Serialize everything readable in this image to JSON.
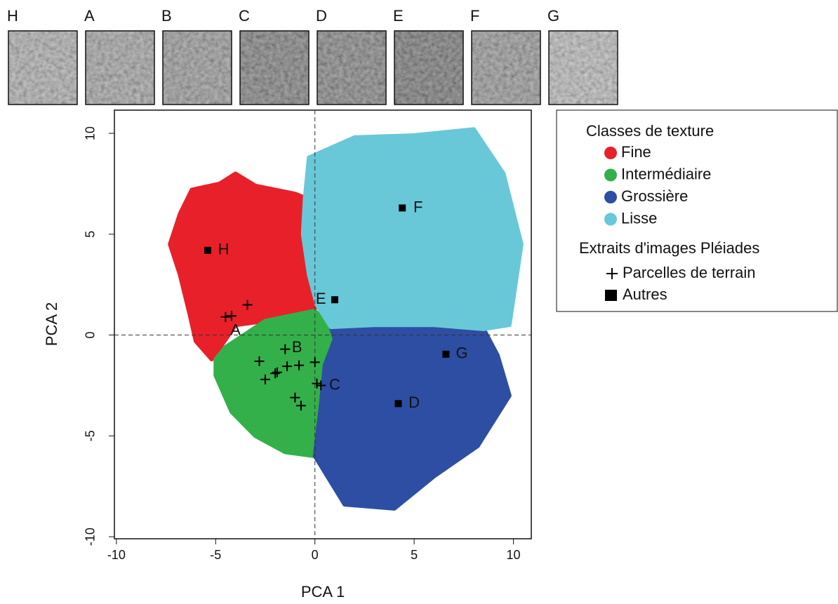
{
  "thumbnails": [
    "H",
    "A",
    "B",
    "C",
    "D",
    "E",
    "F",
    "G"
  ],
  "chart_data": {
    "type": "scatter",
    "xlabel": "PCA 1",
    "ylabel": "PCA 2",
    "xlim": [
      -10.1,
      10.9
    ],
    "ylim": [
      -10.1,
      11.15
    ],
    "xticks": [
      -10,
      -5,
      0,
      5,
      10
    ],
    "yticks": [
      -10,
      -5,
      0,
      5,
      10
    ],
    "zero_lines": true,
    "legend_title": "Classes de texture",
    "marker_legend_title": "Extraits d'images Pléiades",
    "series": [
      {
        "name": "Fine",
        "color": "#e8202a",
        "shape": "region",
        "x": [
          -5.2,
          -6,
          -6.3,
          -6.8,
          -7.3,
          -6.8,
          -6.2,
          -4.8,
          -4,
          -3,
          -2,
          -1,
          -0.5,
          -0.6,
          -0.3,
          0.1,
          -0.2,
          -2.5,
          -4,
          -4.9
        ],
        "y": [
          -1.2,
          -0.3,
          1,
          3,
          4.5,
          6,
          7.2,
          7.5,
          8,
          7.4,
          7.2,
          7,
          6.8,
          5,
          3,
          1.5,
          1,
          0.7,
          0.5,
          -0.8
        ]
      },
      {
        "name": "Intermédiaire",
        "color": "#33b04a",
        "shape": "region",
        "x": [
          -5,
          -4.5,
          -2.5,
          0,
          0.8,
          1,
          0.5,
          0.3,
          0,
          -1.5,
          -3,
          -4.2,
          -5
        ],
        "y": [
          -1.2,
          -0.6,
          0.7,
          1.2,
          0.4,
          -0.2,
          -1.5,
          -3.5,
          -6,
          -5.8,
          -5,
          -3.8,
          -2
        ]
      },
      {
        "name": "Grossière",
        "color": "#2e4ea3",
        "shape": "region",
        "x": [
          0.8,
          3,
          6,
          8.5,
          9.2,
          9.8,
          8.2,
          6,
          4,
          1.5,
          0,
          0.3,
          0.5,
          1
        ],
        "y": [
          0.4,
          0.5,
          0.5,
          0.3,
          -1,
          -3,
          -5.5,
          -7,
          -8.6,
          -8.4,
          -6,
          -3.5,
          -1.5,
          -0.2
        ]
      },
      {
        "name": "Lisse",
        "color": "#68c8d8",
        "shape": "region",
        "x": [
          -0.3,
          -0.6,
          -0.5,
          -0.3,
          2,
          5,
          8,
          9.5,
          10.4,
          9.8,
          8.5,
          6,
          3,
          0.8,
          0.1
        ],
        "y": [
          3,
          5,
          6.8,
          8.8,
          9.8,
          9.9,
          10.2,
          8,
          4.5,
          0.5,
          0.3,
          0.5,
          0.5,
          0.4,
          1.5
        ]
      },
      {
        "name": "Parcelles de terrain",
        "color": "#000000",
        "shape": "plus",
        "x": [
          -4.5,
          -4.2,
          -3.4,
          -1.5,
          -2.8,
          -2,
          -1.9,
          -2.5,
          -1.4,
          -0.8,
          0,
          -1,
          -0.7,
          0.1,
          0.3
        ],
        "y": [
          0.9,
          0.95,
          1.5,
          -0.7,
          -1.3,
          -1.9,
          -1.85,
          -2.2,
          -1.55,
          -1.5,
          -1.35,
          -3.1,
          -3.5,
          -2.4,
          -2.5
        ]
      },
      {
        "name": "Autres",
        "color": "#000000",
        "shape": "square",
        "x": [
          -5.4,
          4.4,
          1,
          6.6,
          4.2
        ],
        "y": [
          4.2,
          6.3,
          1.75,
          -0.95,
          -3.4
        ]
      }
    ],
    "annotations": [
      {
        "text": "H",
        "x": -4.6,
        "y": 4.2
      },
      {
        "text": "F",
        "x": 5.2,
        "y": 6.3
      },
      {
        "text": "E",
        "x": 0.3,
        "y": 1.75
      },
      {
        "text": "G",
        "x": 7.4,
        "y": -0.95
      },
      {
        "text": "D",
        "x": 5,
        "y": -3.4
      },
      {
        "text": "A",
        "x": -4,
        "y": 0.2
      },
      {
        "text": "B",
        "x": -0.9,
        "y": -0.65
      },
      {
        "text": "C",
        "x": 1,
        "y": -2.5
      }
    ]
  }
}
